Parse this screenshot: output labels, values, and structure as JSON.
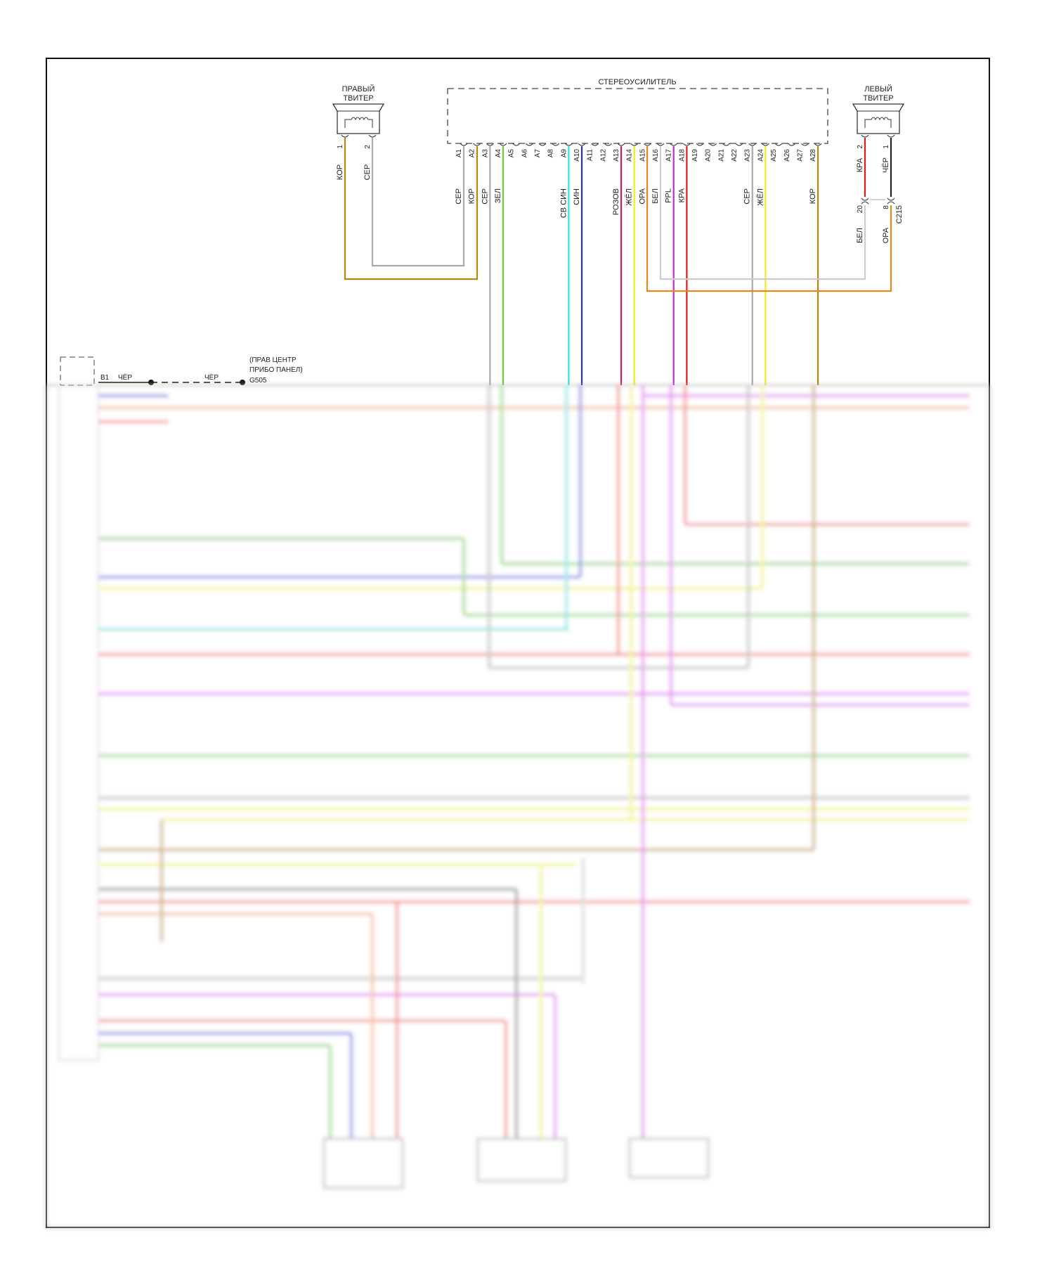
{
  "amplifier": {
    "title": "СТЕРЕОУСИЛИТЕЛЬ",
    "pins": [
      "A1",
      "A2",
      "A3",
      "A4",
      "A5",
      "A6",
      "A7",
      "A8",
      "A9",
      "A10",
      "A11",
      "A12",
      "A13",
      "A14",
      "A15",
      "A16",
      "A17",
      "A18",
      "A19",
      "A20",
      "A21",
      "A22",
      "A23",
      "A24",
      "A25",
      "A26",
      "A27",
      "A28"
    ],
    "wires": [
      {
        "pin": 1,
        "label": "СЕР",
        "color": "#a9a9a9"
      },
      {
        "pin": 2,
        "label": "КОР",
        "color": "#b8860b"
      },
      {
        "pin": 3,
        "label": "СЕР",
        "color": "#a9a9a9"
      },
      {
        "pin": 4,
        "label": "ЗЕЛ",
        "color": "#66cc33"
      },
      {
        "pin": 9,
        "label": "СВ СИН",
        "color": "#33dddd"
      },
      {
        "pin": 10,
        "label": "СИН",
        "color": "#2233bb"
      },
      {
        "pin": 13,
        "label": "РОЗОВ",
        "color": "#d01a55"
      },
      {
        "pin": 14,
        "label": "ЖЁЛ",
        "color": "#eeee22"
      },
      {
        "pin": 15,
        "label": "ОРА",
        "color": "#e08a1e"
      },
      {
        "pin": 16,
        "label": "БЕЛ",
        "color": "#cccccc"
      },
      {
        "pin": 17,
        "label": "PPL",
        "color": "#c02ccc"
      },
      {
        "pin": 18,
        "label": "КРА",
        "color": "#dd1b1b"
      },
      {
        "pin": 23,
        "label": "СЕР",
        "color": "#a9a9a9"
      },
      {
        "pin": 24,
        "label": "ЖЁЛ",
        "color": "#eeee22"
      },
      {
        "pin": 28,
        "label": "КОР",
        "color": "#b8860b"
      }
    ]
  },
  "right_tweeter": {
    "title_line1": "ПРАВЫЙ",
    "title_line2": "ТВИТЕР",
    "pin1": "1",
    "pin2": "2",
    "wire1_label": "КОР",
    "wire2_label": "СЕР"
  },
  "left_tweeter": {
    "title_line1": "ЛЕВЫЙ",
    "title_line2": "ТВИТЕР",
    "pin2": "2",
    "pin1": "1",
    "wire2_label": "КРА",
    "wire1_label": "ЧЁР",
    "connector": "C215",
    "conn_pin_a": "20",
    "conn_pin_b": "8",
    "wire_a_label": "БЕЛ",
    "wire_b_label": "ОРА"
  },
  "ground": {
    "pin": "B1",
    "wire_label_1": "ЧЁР",
    "wire_label_2": "ЧЁР",
    "location_line1": "(ПРАВ ЦЕНТР",
    "location_line2": "ПРИБО ПАНЕЛ)",
    "id": "G505"
  }
}
